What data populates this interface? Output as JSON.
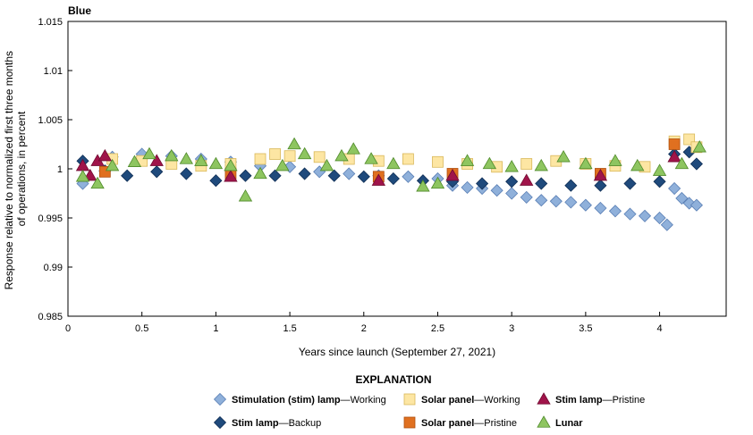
{
  "chart_data": {
    "type": "scatter",
    "title": "Blue",
    "xlabel": "Years since launch (September 27, 2021)",
    "ylabel_lines": [
      "Response relative to normalized first three months",
      "of operations, in percent"
    ],
    "xlim": [
      0,
      4.45
    ],
    "ylim": [
      0.985,
      1.015
    ],
    "x_ticks": [
      0,
      0.5,
      1,
      1.5,
      2,
      2.5,
      3,
      3.5,
      4
    ],
    "x_tick_labels": [
      "0",
      "0.5",
      "1",
      "1.5",
      "2",
      "2.5",
      "3",
      "3.5",
      "4"
    ],
    "y_ticks": [
      0.985,
      0.99,
      0.995,
      1,
      1.005,
      1.01,
      1.015
    ],
    "y_tick_labels": [
      "0.985",
      "0.99",
      "0.995",
      "1",
      "1.005",
      "1.01",
      "1.015"
    ],
    "grid": false,
    "legend_placement": "bottom",
    "legend": {
      "title": "EXPLANATION",
      "separator": "—"
    },
    "series": [
      {
        "key": "stim_working",
        "name_bold": "Stimulation (stim) lamp",
        "name_rest": "Working",
        "marker": "diamond",
        "color": "#8fb0da",
        "stroke": "#5a7fb5",
        "x": [
          0.1,
          0.3,
          0.5,
          0.7,
          0.9,
          1.1,
          1.3,
          1.5,
          1.7,
          1.9,
          2.1,
          2.3,
          2.5,
          2.6,
          2.7,
          2.8,
          2.9,
          3.0,
          3.1,
          3.2,
          3.3,
          3.4,
          3.5,
          3.6,
          3.7,
          3.8,
          3.9,
          4.0,
          4.05,
          4.1,
          4.15,
          4.2,
          4.25
        ],
        "y": [
          0.9985,
          1.0012,
          1.0015,
          1.0013,
          1.001,
          1.0007,
          1.0003,
          1.0002,
          0.9997,
          0.9995,
          0.9993,
          0.9992,
          0.999,
          0.9983,
          0.9981,
          0.998,
          0.9978,
          0.9975,
          0.9971,
          0.9968,
          0.9967,
          0.9966,
          0.9963,
          0.996,
          0.9957,
          0.9954,
          0.9952,
          0.995,
          0.9943,
          0.998,
          0.997,
          0.9965,
          0.9963
        ]
      },
      {
        "key": "stim_backup",
        "name_bold": "Stim lamp",
        "name_rest": "Backup",
        "marker": "diamond",
        "color": "#1f4a7c",
        "stroke": "#0f2e55",
        "x": [
          0.1,
          0.25,
          0.4,
          0.6,
          0.8,
          1.0,
          1.2,
          1.4,
          1.6,
          1.8,
          2.0,
          2.2,
          2.4,
          2.6,
          2.8,
          3.0,
          3.2,
          3.4,
          3.6,
          3.8,
          4.0,
          4.1,
          4.2,
          4.25
        ],
        "y": [
          1.0008,
          0.9998,
          0.9993,
          0.9997,
          0.9995,
          0.9988,
          0.9993,
          0.9993,
          0.9995,
          0.9993,
          0.9992,
          0.999,
          0.9988,
          0.9987,
          0.9985,
          0.9987,
          0.9985,
          0.9983,
          0.9983,
          0.9985,
          0.9987,
          1.0015,
          1.0017,
          1.0005
        ]
      },
      {
        "key": "solar_working",
        "name_bold": "Solar panel",
        "name_rest": "Working",
        "marker": "square",
        "color": "#fde6a3",
        "stroke": "#d9b85a",
        "x": [
          0.3,
          0.5,
          0.7,
          0.9,
          1.1,
          1.3,
          1.4,
          1.5,
          1.7,
          1.9,
          2.1,
          2.3,
          2.5,
          2.7,
          2.9,
          3.1,
          3.3,
          3.5,
          3.7,
          3.9,
          4.1,
          4.2,
          4.25
        ],
        "y": [
          1.001,
          1.0008,
          1.0005,
          1.0003,
          1.0005,
          1.001,
          1.0015,
          1.0013,
          1.0012,
          1.001,
          1.0008,
          1.001,
          1.0007,
          1.0005,
          1.0002,
          1.0005,
          1.0008,
          1.0005,
          1.0003,
          1.0002,
          1.0028,
          1.003,
          1.0022
        ]
      },
      {
        "key": "solar_pristine",
        "name_bold": "Solar panel",
        "name_rest": "Pristine",
        "marker": "square",
        "color": "#e07020",
        "stroke": "#b05010",
        "x": [
          0.25,
          1.1,
          2.1,
          2.6,
          3.6,
          4.1
        ],
        "y": [
          0.9997,
          0.9995,
          0.9992,
          0.9995,
          0.9995,
          1.0025
        ]
      },
      {
        "key": "stim_pristine",
        "name_bold": "Stim lamp",
        "name_rest": "Pristine",
        "marker": "triangle",
        "color": "#a0144a",
        "stroke": "#700a30",
        "x": [
          0.1,
          0.15,
          0.2,
          0.25,
          0.6,
          1.1,
          2.1,
          2.6,
          3.1,
          3.6,
          4.1
        ],
        "y": [
          1.0003,
          0.9993,
          1.0008,
          1.0013,
          1.0008,
          0.9992,
          0.9988,
          0.9993,
          0.9988,
          0.9993,
          1.0012
        ]
      },
      {
        "key": "lunar",
        "name_bold": "Lunar",
        "name_rest": "",
        "marker": "triangle",
        "color": "#8ec560",
        "stroke": "#4f8a2a",
        "x": [
          0.1,
          0.2,
          0.3,
          0.45,
          0.55,
          0.7,
          0.8,
          0.9,
          1.0,
          1.1,
          1.2,
          1.3,
          1.45,
          1.53,
          1.6,
          1.75,
          1.85,
          1.93,
          2.05,
          2.2,
          2.4,
          2.5,
          2.7,
          2.85,
          3.0,
          3.2,
          3.35,
          3.5,
          3.7,
          3.85,
          4.0,
          4.15,
          4.27
        ],
        "y": [
          0.9992,
          0.9985,
          1.0003,
          1.0007,
          1.0015,
          1.0013,
          1.001,
          1.0008,
          1.0005,
          1.0003,
          0.9972,
          0.9995,
          1.0003,
          1.0025,
          1.0015,
          1.0003,
          1.0013,
          1.002,
          1.001,
          1.0005,
          0.9982,
          0.9985,
          1.0008,
          1.0005,
          1.0002,
          1.0003,
          1.0012,
          1.0005,
          1.0008,
          1.0003,
          0.9998,
          1.0005,
          1.0022
        ]
      }
    ]
  }
}
